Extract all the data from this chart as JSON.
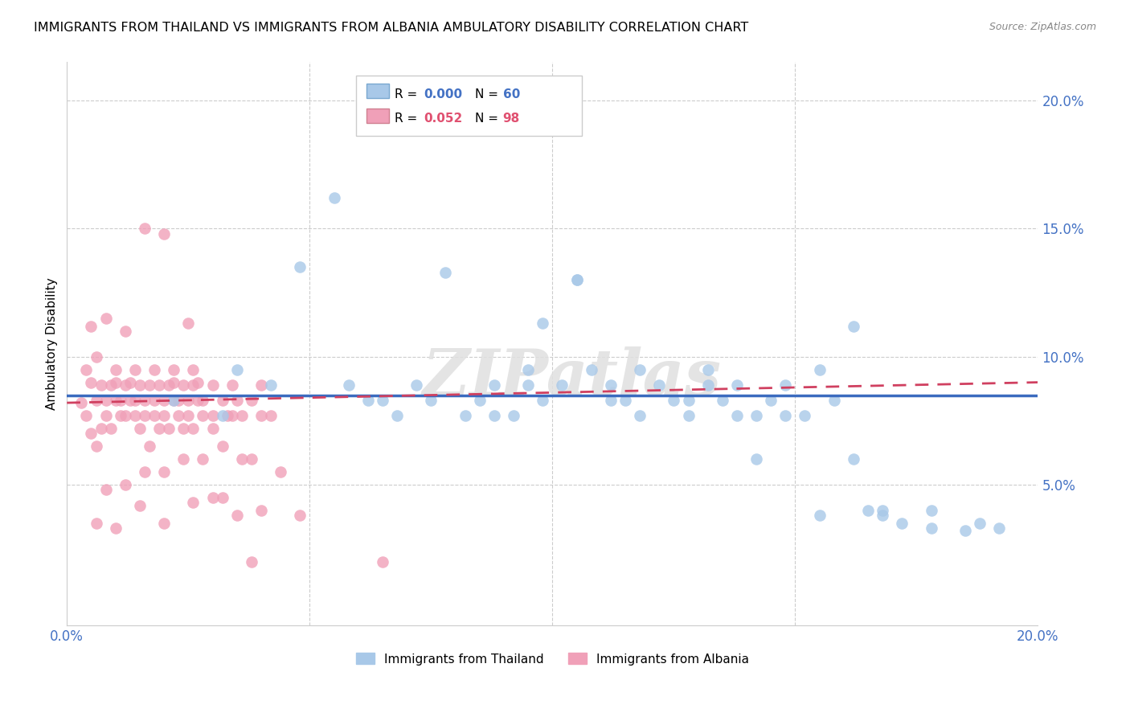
{
  "title": "IMMIGRANTS FROM THAILAND VS IMMIGRANTS FROM ALBANIA AMBULATORY DISABILITY CORRELATION CHART",
  "source": "Source: ZipAtlas.com",
  "ylabel": "Ambulatory Disability",
  "xlim": [
    0.0,
    0.2
  ],
  "ylim": [
    -0.005,
    0.215
  ],
  "ytick_vals": [
    0.0,
    0.05,
    0.1,
    0.15,
    0.2
  ],
  "ytick_labels": [
    "",
    "5.0%",
    "10.0%",
    "15.0%",
    "20.0%"
  ],
  "xtick_vals": [
    0.0,
    0.05,
    0.1,
    0.15,
    0.2
  ],
  "xtick_labels": [
    "0.0%",
    "",
    "",
    "",
    "20.0%"
  ],
  "legend_blue_r": "0.000",
  "legend_blue_n": "60",
  "legend_pink_r": "0.052",
  "legend_pink_n": "98",
  "blue_scatter_color": "#a8c8e8",
  "pink_scatter_color": "#f0a0b8",
  "line_blue_color": "#3b6bbf",
  "line_pink_color": "#d04060",
  "watermark": "ZIPatlas",
  "legend_label_blue": "Immigrants from Thailand",
  "legend_label_pink": "Immigrants from Albania",
  "th_x": [
    0.022,
    0.032,
    0.042,
    0.048,
    0.055,
    0.058,
    0.062,
    0.068,
    0.072,
    0.075,
    0.078,
    0.082,
    0.085,
    0.088,
    0.092,
    0.095,
    0.098,
    0.102,
    0.105,
    0.108,
    0.112,
    0.115,
    0.118,
    0.122,
    0.125,
    0.128,
    0.132,
    0.135,
    0.138,
    0.142,
    0.145,
    0.148,
    0.152,
    0.155,
    0.158,
    0.162,
    0.165,
    0.168,
    0.172,
    0.178,
    0.035,
    0.065,
    0.088,
    0.095,
    0.105,
    0.118,
    0.128,
    0.142,
    0.155,
    0.168,
    0.098,
    0.112,
    0.132,
    0.148,
    0.162,
    0.138,
    0.188,
    0.192,
    0.178,
    0.185
  ],
  "th_y": [
    0.083,
    0.077,
    0.089,
    0.135,
    0.162,
    0.089,
    0.083,
    0.077,
    0.089,
    0.083,
    0.133,
    0.077,
    0.083,
    0.089,
    0.077,
    0.095,
    0.083,
    0.089,
    0.13,
    0.095,
    0.089,
    0.083,
    0.077,
    0.089,
    0.083,
    0.077,
    0.095,
    0.083,
    0.089,
    0.077,
    0.083,
    0.089,
    0.077,
    0.095,
    0.083,
    0.06,
    0.04,
    0.038,
    0.035,
    0.04,
    0.095,
    0.083,
    0.077,
    0.089,
    0.13,
    0.095,
    0.083,
    0.06,
    0.038,
    0.04,
    0.113,
    0.083,
    0.089,
    0.077,
    0.112,
    0.077,
    0.035,
    0.033,
    0.033,
    0.032
  ],
  "al_x": [
    0.003,
    0.004,
    0.005,
    0.005,
    0.006,
    0.006,
    0.007,
    0.007,
    0.008,
    0.008,
    0.009,
    0.009,
    0.01,
    0.01,
    0.011,
    0.011,
    0.012,
    0.012,
    0.013,
    0.013,
    0.014,
    0.014,
    0.015,
    0.015,
    0.016,
    0.016,
    0.017,
    0.017,
    0.018,
    0.018,
    0.019,
    0.019,
    0.02,
    0.02,
    0.021,
    0.021,
    0.022,
    0.022,
    0.023,
    0.023,
    0.024,
    0.024,
    0.025,
    0.025,
    0.026,
    0.026,
    0.027,
    0.027,
    0.028,
    0.028,
    0.03,
    0.03,
    0.032,
    0.033,
    0.034,
    0.035,
    0.036,
    0.038,
    0.04,
    0.042,
    0.004,
    0.006,
    0.008,
    0.01,
    0.012,
    0.014,
    0.016,
    0.018,
    0.02,
    0.022,
    0.024,
    0.026,
    0.028,
    0.03,
    0.032,
    0.034,
    0.036,
    0.038,
    0.04,
    0.044,
    0.005,
    0.008,
    0.012,
    0.016,
    0.02,
    0.025,
    0.03,
    0.035,
    0.04,
    0.048,
    0.006,
    0.01,
    0.015,
    0.02,
    0.026,
    0.032,
    0.038,
    0.065
  ],
  "al_y": [
    0.082,
    0.077,
    0.09,
    0.07,
    0.083,
    0.065,
    0.089,
    0.072,
    0.083,
    0.077,
    0.089,
    0.072,
    0.083,
    0.09,
    0.077,
    0.083,
    0.089,
    0.077,
    0.083,
    0.09,
    0.077,
    0.083,
    0.089,
    0.072,
    0.083,
    0.077,
    0.089,
    0.065,
    0.083,
    0.077,
    0.089,
    0.072,
    0.083,
    0.077,
    0.089,
    0.072,
    0.083,
    0.09,
    0.077,
    0.083,
    0.089,
    0.072,
    0.083,
    0.077,
    0.089,
    0.072,
    0.083,
    0.09,
    0.077,
    0.083,
    0.089,
    0.072,
    0.083,
    0.077,
    0.089,
    0.083,
    0.077,
    0.083,
    0.089,
    0.077,
    0.095,
    0.1,
    0.048,
    0.095,
    0.05,
    0.095,
    0.055,
    0.095,
    0.055,
    0.095,
    0.06,
    0.095,
    0.06,
    0.077,
    0.065,
    0.077,
    0.06,
    0.06,
    0.077,
    0.055,
    0.112,
    0.115,
    0.11,
    0.15,
    0.148,
    0.113,
    0.045,
    0.038,
    0.04,
    0.038,
    0.035,
    0.033,
    0.042,
    0.035,
    0.043,
    0.045,
    0.02,
    0.02
  ],
  "blue_line_y": 0.085,
  "pink_line_start_y": 0.082,
  "pink_line_end_y": 0.09
}
